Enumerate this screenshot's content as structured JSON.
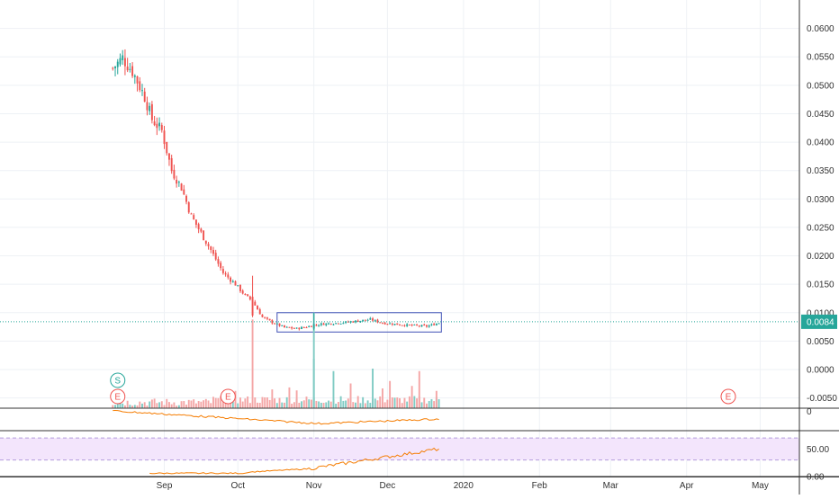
{
  "chart_data": {
    "type": "candlestick",
    "title": "",
    "xlabel": "",
    "ylabel": "",
    "price_axis": {
      "ylim": [
        -0.0068,
        0.065
      ],
      "ticks": [
        "0.0600",
        "0.0550",
        "0.0500",
        "0.0450",
        "0.0400",
        "0.0350",
        "0.0300",
        "0.0250",
        "0.0200",
        "0.0150",
        "0.0100",
        "0.0050",
        "0.0000",
        "-0.0050"
      ],
      "tick_values": [
        0.06,
        0.055,
        0.05,
        0.045,
        0.04,
        0.035,
        0.03,
        0.025,
        0.02,
        0.015,
        0.01,
        0.005,
        0.0,
        -0.005
      ]
    },
    "time_axis": {
      "labels": [
        "Sep",
        "Oct",
        "Nov",
        "Dec",
        "2020",
        "Feb",
        "Mar",
        "Apr",
        "May"
      ],
      "label_days": [
        11,
        41,
        72,
        102,
        133,
        164,
        193,
        224,
        254
      ],
      "range_days": [
        -56,
        270
      ],
      "grid": true
    },
    "last_price": {
      "value": 0.0084,
      "label": "0.0084",
      "color": "#26a69a"
    },
    "range_box": {
      "day_start": 57,
      "day_end": 124,
      "price_low": 0.0066,
      "price_high": 0.01,
      "color": "#3f51b5"
    },
    "colors": {
      "up": "#26a69a",
      "down": "#ef5350",
      "volume_up": "#80cbc4",
      "volume_down": "#f4a6a6",
      "line": "#f57c00",
      "rsi_band": "#f3e5fc"
    },
    "event_markers": [
      {
        "label": "S",
        "day": -8,
        "row": "upper",
        "color": "#26a69a"
      },
      {
        "label": "E",
        "day": -8,
        "row": "lower",
        "color": "#ef5350"
      },
      {
        "label": "E",
        "day": 37,
        "row": "lower",
        "color": "#ef5350"
      },
      {
        "label": "E",
        "day": 241,
        "row": "lower",
        "color": "#ef5350"
      }
    ],
    "volume": {
      "spikes": [
        {
          "day": 35,
          "level": 0.3
        },
        {
          "day": 40,
          "level": 0.35
        },
        {
          "day": 55,
          "level": 0.38
        },
        {
          "day": 62,
          "level": 0.42
        },
        {
          "day": 65,
          "level": 0.36
        },
        {
          "day": 72,
          "level": 1.0,
          "up": true
        },
        {
          "day": 80,
          "level": 0.75,
          "up": true
        },
        {
          "day": 87,
          "level": 0.5
        },
        {
          "day": 96,
          "level": 0.8,
          "up": true
        },
        {
          "day": 100,
          "level": 0.4
        },
        {
          "day": 103,
          "level": 0.55
        },
        {
          "day": 112,
          "level": 0.45
        },
        {
          "day": 115,
          "level": 0.75
        },
        {
          "day": 122,
          "level": 0.35
        }
      ]
    },
    "indicator_panel_1": {
      "ticks": [
        "0"
      ],
      "tick_values": [
        0
      ]
    },
    "indicator_panel_2": {
      "name": "",
      "ticks": [
        "50.00",
        "0.00"
      ],
      "tick_values": [
        50,
        0
      ],
      "band": [
        30,
        70
      ],
      "ylim": [
        0,
        80
      ]
    }
  }
}
